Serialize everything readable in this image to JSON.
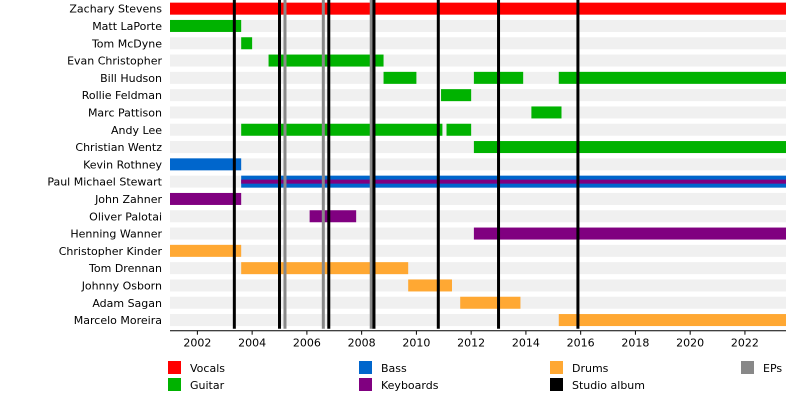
{
  "chart_data": {
    "type": "timeline",
    "x_axis": {
      "min": 2001,
      "max": 2023.5,
      "ticks": [
        2002,
        2004,
        2006,
        2008,
        2010,
        2012,
        2014,
        2016,
        2018,
        2020,
        2022
      ]
    },
    "colors": {
      "Vocals": "#ff0000",
      "Guitar": "#00b200",
      "Bass": "#0066cc",
      "Keyboards": "#800080",
      "Drums": "#ffa833",
      "Studio album": "#000000",
      "EPs": "#888888"
    },
    "members": [
      {
        "name": "Zachary Stevens",
        "periods": [
          {
            "start": 2001.0,
            "end": 2023.5,
            "role": "Vocals"
          }
        ]
      },
      {
        "name": "Matt LaPorte",
        "periods": [
          {
            "start": 2001.0,
            "end": 2003.6,
            "role": "Guitar"
          }
        ]
      },
      {
        "name": "Tom McDyne",
        "periods": [
          {
            "start": 2003.6,
            "end": 2004.0,
            "role": "Guitar"
          }
        ]
      },
      {
        "name": "Evan Christopher",
        "periods": [
          {
            "start": 2004.6,
            "end": 2008.8,
            "role": "Guitar"
          }
        ]
      },
      {
        "name": "Bill Hudson",
        "periods": [
          {
            "start": 2008.8,
            "end": 2010.0,
            "role": "Guitar"
          },
          {
            "start": 2012.1,
            "end": 2013.9,
            "role": "Guitar"
          },
          {
            "start": 2015.2,
            "end": 2023.5,
            "role": "Guitar"
          }
        ]
      },
      {
        "name": "Rollie Feldman",
        "periods": [
          {
            "start": 2010.9,
            "end": 2012.0,
            "role": "Guitar"
          }
        ]
      },
      {
        "name": "Marc Pattison",
        "periods": [
          {
            "start": 2014.2,
            "end": 2015.3,
            "role": "Guitar"
          }
        ]
      },
      {
        "name": "Andy Lee",
        "periods": [
          {
            "start": 2003.6,
            "end": 2010.95,
            "role": "Guitar"
          },
          {
            "start": 2011.1,
            "end": 2012.0,
            "role": "Guitar"
          }
        ]
      },
      {
        "name": "Christian Wentz",
        "periods": [
          {
            "start": 2012.1,
            "end": 2023.5,
            "role": "Guitar"
          }
        ]
      },
      {
        "name": "Kevin Rothney",
        "periods": [
          {
            "start": 2001.0,
            "end": 2003.6,
            "role": "Bass"
          }
        ]
      },
      {
        "name": "Paul Michael Stewart",
        "periods": [
          {
            "start": 2003.6,
            "end": 2023.5,
            "role": "Bass",
            "second_role": "Keyboards"
          }
        ]
      },
      {
        "name": "John Zahner",
        "periods": [
          {
            "start": 2001.0,
            "end": 2003.6,
            "role": "Keyboards"
          }
        ]
      },
      {
        "name": "Oliver Palotai",
        "periods": [
          {
            "start": 2006.1,
            "end": 2007.8,
            "role": "Keyboards"
          }
        ]
      },
      {
        "name": "Henning Wanner",
        "periods": [
          {
            "start": 2012.1,
            "end": 2023.5,
            "role": "Keyboards"
          }
        ]
      },
      {
        "name": "Christopher Kinder",
        "periods": [
          {
            "start": 2001.0,
            "end": 2003.6,
            "role": "Drums"
          }
        ]
      },
      {
        "name": "Tom Drennan",
        "periods": [
          {
            "start": 2003.6,
            "end": 2009.7,
            "role": "Drums"
          }
        ]
      },
      {
        "name": "Johnny Osborn",
        "periods": [
          {
            "start": 2009.7,
            "end": 2011.3,
            "role": "Drums"
          }
        ]
      },
      {
        "name": "Adam Sagan",
        "periods": [
          {
            "start": 2011.6,
            "end": 2013.8,
            "role": "Drums"
          }
        ]
      },
      {
        "name": "Marcelo Moreira",
        "periods": [
          {
            "start": 2015.2,
            "end": 2023.5,
            "role": "Drums"
          }
        ]
      }
    ],
    "studio_albums": [
      2003.35,
      2005.0,
      2006.8,
      2008.45,
      2010.8,
      2013.0,
      2015.9
    ],
    "eps": [
      2005.2,
      2006.6,
      2008.35
    ],
    "legend": [
      {
        "label": "Vocals",
        "color": "#ff0000"
      },
      {
        "label": "Guitar",
        "color": "#00b200"
      },
      {
        "label": "Bass",
        "color": "#0066cc"
      },
      {
        "label": "Keyboards",
        "color": "#800080"
      },
      {
        "label": "Drums",
        "color": "#ffa833"
      },
      {
        "label": "Studio album",
        "color": "#000000"
      },
      {
        "label": "EPs",
        "color": "#888888"
      }
    ]
  }
}
